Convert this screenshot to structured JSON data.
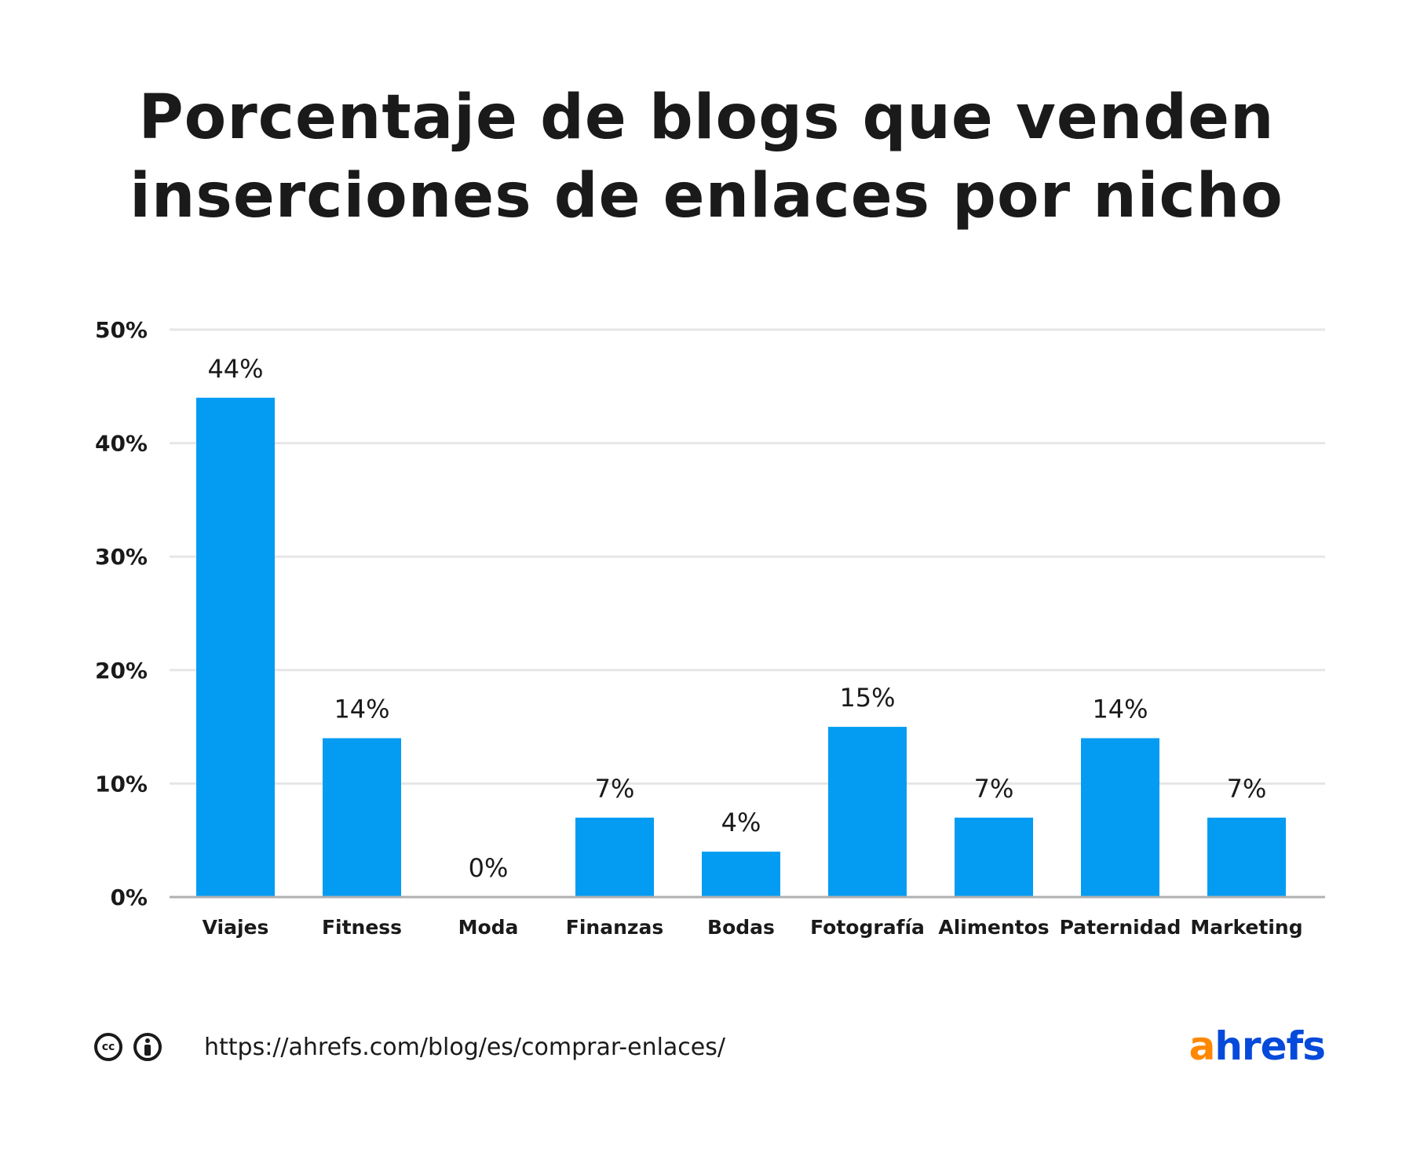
{
  "title_lines": [
    "Porcentaje de blogs que venden",
    "inserciones de enlaces por nicho"
  ],
  "chart_data": {
    "type": "bar",
    "title": "Porcentaje de blogs que venden inserciones de enlaces por nicho",
    "categories": [
      "Viajes",
      "Fitness",
      "Moda",
      "Finanzas",
      "Bodas",
      "Fotografía",
      "Alimentos",
      "Paternidad",
      "Marketing"
    ],
    "values": [
      44,
      14,
      0,
      7,
      4,
      15,
      7,
      14,
      7
    ],
    "data_labels": [
      "44%",
      "14%",
      "0%",
      "7%",
      "4%",
      "15%",
      "7%",
      "14%",
      "7%"
    ],
    "yticks": [
      "0%",
      "10%",
      "20%",
      "30%",
      "40%",
      "50%"
    ],
    "ylim": [
      0,
      50
    ],
    "grid": true,
    "bar_color": "#039cf2",
    "xlabel": "",
    "ylabel": ""
  },
  "footer": {
    "license_icons": [
      "creative-commons-icon",
      "attribution-icon"
    ],
    "cc_text": "cc",
    "url": "https://ahrefs.com/blog/es/comprar-enlaces/"
  },
  "logo": {
    "text_a": "a",
    "text_rest": "hrefs",
    "color_a": "#ff8800",
    "color_rest": "#054ada"
  }
}
